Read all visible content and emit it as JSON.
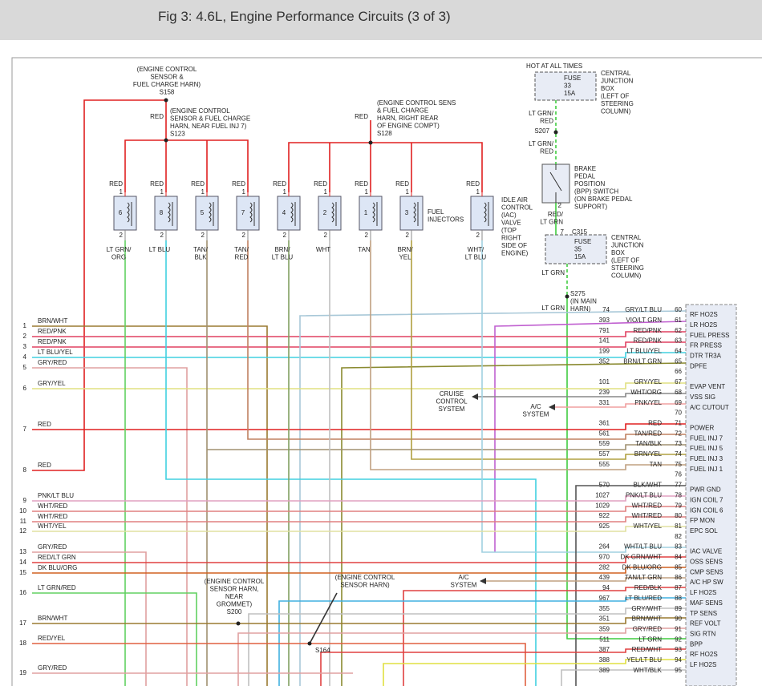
{
  "header": {
    "title": "Fig 3: 4.6L, Engine Performance Circuits (3 of 3)"
  },
  "injectors": [
    {
      "feed": "RED",
      "pin_in": "1",
      "number": "6",
      "pin_out": "2",
      "wire": [
        "LT GRN/",
        "ORG"
      ]
    },
    {
      "feed": "RED",
      "pin_in": "1",
      "number": "8",
      "pin_out": "2",
      "wire": [
        "LT BLU"
      ]
    },
    {
      "feed": "RED",
      "pin_in": "1",
      "number": "5",
      "pin_out": "2",
      "wire": [
        "TAN/",
        "BLK"
      ]
    },
    {
      "feed": "RED",
      "pin_in": "1",
      "number": "7",
      "pin_out": "2",
      "wire": [
        "TAN/",
        "RED"
      ]
    },
    {
      "feed": "RED",
      "pin_in": "1",
      "number": "4",
      "pin_out": "2",
      "wire": [
        "BRN/",
        "LT BLU"
      ]
    },
    {
      "feed": "RED",
      "pin_in": "1",
      "number": "2",
      "pin_out": "2",
      "wire": [
        "WHT"
      ]
    },
    {
      "feed": "RED",
      "pin_in": "1",
      "number": "1",
      "pin_out": "2",
      "wire": [
        "TAN"
      ]
    },
    {
      "feed": "RED",
      "pin_in": "1",
      "number": "3",
      "pin_out": "2",
      "wire": [
        "BRN/",
        "YEL"
      ]
    },
    {
      "feed": "RED",
      "pin_in": "1",
      "number": "",
      "pin_out": "2",
      "wire": [
        "WHT/",
        "LT BLU"
      ]
    }
  ],
  "notes": [
    {
      "lines": [
        "(ENGINE CONTROL",
        "SENSOR &",
        "FUEL CHARGE HARN)",
        "S158"
      ]
    },
    {
      "lines": [
        "(ENGINE CONTROL",
        "SENSOR & FUEL CHARGE",
        "HARN, NEAR FUEL INJ 7)",
        "S123"
      ]
    },
    {
      "lines": [
        "(ENGINE CONTROL SENS",
        "& FUEL CHARGE",
        "HARN, RIGHT REAR",
        "OF ENGINE COMPT)",
        "S128"
      ]
    },
    {
      "lines": [
        "RED"
      ]
    },
    {
      "lines": [
        "RED"
      ]
    },
    {
      "lines": [
        "HOT AT ALL TIMES"
      ]
    },
    {
      "lines": [
        "FUSE",
        "33",
        "15A"
      ]
    },
    {
      "lines": [
        "CENTRAL",
        "JUNCTION",
        "BOX",
        "(LEFT OF",
        "STEERING",
        "COLUMN)"
      ]
    },
    {
      "lines": [
        "LT GRN/",
        "RED"
      ]
    },
    {
      "lines": [
        "S207"
      ]
    },
    {
      "lines": [
        "LT GRN/",
        "RED"
      ]
    },
    {
      "lines": [
        "BRAKE",
        "PEDAL",
        "POSITION",
        "(BPP) SWITCH",
        "(ON BRAKE PEDAL",
        "SUPPORT)"
      ]
    },
    {
      "lines": [
        "2"
      ]
    },
    {
      "lines": [
        "RED/",
        "LT GRN"
      ]
    },
    {
      "lines": [
        "7"
      ]
    },
    {
      "lines": [
        "C315"
      ]
    },
    {
      "lines": [
        "FUSE",
        "35",
        "15A"
      ]
    },
    {
      "lines": [
        "CENTRAL",
        "JUNCTION",
        "BOX",
        "(LEFT OF",
        "STEERING",
        "COLUMN)"
      ]
    },
    {
      "lines": [
        "LT GRN"
      ]
    },
    {
      "lines": [
        "S275",
        "(IN MAIN",
        "HARN)"
      ]
    },
    {
      "lines": [
        "LT GRN"
      ]
    },
    {
      "lines": [
        "CRUISE",
        "CONTROL",
        "SYSTEM"
      ]
    },
    {
      "lines": [
        "A/C",
        "SYSTEM"
      ]
    },
    {
      "lines": [
        "A/C",
        "SYSTEM"
      ]
    },
    {
      "lines": [
        "(ENGINE CONTROL",
        "SENSOR HARN,",
        "NEAR",
        "GROMMET)",
        "S200"
      ]
    },
    {
      "lines": [
        "(ENGINE CONTROL",
        "SENSOR HARN)"
      ]
    },
    {
      "lines": [
        "S164"
      ]
    },
    {
      "lines": [
        "FUEL",
        "INJECTORS"
      ]
    },
    {
      "lines": [
        "IDLE AIR",
        "CONTROL",
        "(IAC)",
        "VALVE",
        "(TOP",
        "RIGHT",
        "SIDE OF",
        "ENGINE)"
      ]
    }
  ],
  "left_wires": [
    {
      "pin": "1",
      "color": "BRN/WHT"
    },
    {
      "pin": "2",
      "color": "RED/PNK"
    },
    {
      "pin": "3",
      "color": "RED/PNK"
    },
    {
      "pin": "4",
      "color": "LT BLU/YEL"
    },
    {
      "pin": "5",
      "color": "GRY/RED"
    },
    {
      "pin": "6",
      "color": "GRY/YEL"
    },
    {
      "pin": "7",
      "color": "RED"
    },
    {
      "pin": "8",
      "color": "RED"
    },
    {
      "pin": "9",
      "color": "PNK/LT BLU"
    },
    {
      "pin": "10",
      "color": "WHT/RED"
    },
    {
      "pin": "11",
      "color": "WHT/RED"
    },
    {
      "pin": "12",
      "color": "WHT/YEL"
    },
    {
      "pin": "13",
      "color": "GRY/RED"
    },
    {
      "pin": "14",
      "color": "RED/LT GRN"
    },
    {
      "pin": "15",
      "color": "DK BLU/ORG"
    },
    {
      "pin": "16",
      "color": "LT GRN/RED"
    },
    {
      "pin": "17",
      "color": "BRN/WHT"
    },
    {
      "pin": "18",
      "color": "RED/YEL"
    },
    {
      "pin": "19",
      "color": "GRY/RED"
    }
  ],
  "pcm_pins": [
    {
      "circuit": "74",
      "color": "GRY/LT BLU",
      "pin": "60",
      "function": "RF HO2S"
    },
    {
      "circuit": "393",
      "color": "VIO/LT GRN",
      "pin": "61",
      "function": "LR HO2S"
    },
    {
      "circuit": "791",
      "color": "RED/PNK",
      "pin": "62",
      "function": "FUEL PRESS"
    },
    {
      "circuit": "141",
      "color": "RED/PNK",
      "pin": "63",
      "function": "FR PRESS"
    },
    {
      "circuit": "199",
      "color": "LT BLU/YEL",
      "pin": "64",
      "function": "DTR TR3A"
    },
    {
      "circuit": "352",
      "color": "BRN/LT GRN",
      "pin": "65",
      "function": "DPFE"
    },
    {
      "pin": "66"
    },
    {
      "circuit": "101",
      "color": "GRY/YEL",
      "pin": "67",
      "function": "EVAP VENT"
    },
    {
      "circuit": "239",
      "color": "WHT/ORG",
      "pin": "68",
      "function": "VSS SIG"
    },
    {
      "circuit": "331",
      "color": "PNK/YEL",
      "pin": "69",
      "function": "A/C CUTOUT"
    },
    {
      "pin": "70"
    },
    {
      "circuit": "361",
      "color": "RED",
      "pin": "71",
      "function": "POWER"
    },
    {
      "circuit": "561",
      "color": "TAN/RED",
      "pin": "72",
      "function": "FUEL INJ 7"
    },
    {
      "circuit": "559",
      "color": "TAN/BLK",
      "pin": "73",
      "function": "FUEL INJ 5"
    },
    {
      "circuit": "557",
      "color": "BRN/YEL",
      "pin": "74",
      "function": "FUEL INJ 3"
    },
    {
      "circuit": "555",
      "color": "TAN",
      "pin": "75",
      "function": "FUEL INJ 1"
    },
    {
      "pin": "76"
    },
    {
      "circuit": "570",
      "color": "BLK/WHT",
      "pin": "77",
      "function": "PWR GND"
    },
    {
      "circuit": "1027",
      "color": "PNK/LT BLU",
      "pin": "78",
      "function": "IGN COIL 7"
    },
    {
      "circuit": "1029",
      "color": "WHT/RED",
      "pin": "79",
      "function": "IGN COIL 6"
    },
    {
      "circuit": "922",
      "color": "WHT/RED",
      "pin": "80",
      "function": "FP MON"
    },
    {
      "circuit": "925",
      "color": "WHT/YEL",
      "pin": "81",
      "function": "EPC SOL"
    },
    {
      "pin": "82"
    },
    {
      "circuit": "264",
      "color": "WHT/LT BLU",
      "pin": "83",
      "function": "IAC VALVE"
    },
    {
      "circuit": "970",
      "color": "DK GRN/WHT",
      "pin": "84",
      "function": "OSS SENS"
    },
    {
      "circuit": "282",
      "color": "DK BLU/ORG",
      "pin": "85",
      "function": "CMP SENS"
    },
    {
      "circuit": "439",
      "color": "TAN/LT GRN",
      "pin": "86",
      "function": "A/C HP SW"
    },
    {
      "circuit": "94",
      "color": "RED/BLK",
      "pin": "87",
      "function": "LF HO2S"
    },
    {
      "circuit": "967",
      "color": "LT BLU/RED",
      "pin": "88",
      "function": "MAF SENS"
    },
    {
      "circuit": "355",
      "color": "GRY/WHT",
      "pin": "89",
      "function": "TP SENS"
    },
    {
      "circuit": "351",
      "color": "BRN/WHT",
      "pin": "90",
      "function": "REF VOLT"
    },
    {
      "circuit": "359",
      "color": "GRY/RED",
      "pin": "91",
      "function": "SIG RTN"
    },
    {
      "circuit": "511",
      "color": "LT GRN",
      "pin": "92",
      "function": "BPP"
    },
    {
      "circuit": "387",
      "color": "RED/WHT",
      "pin": "93",
      "function": "RF HO2S"
    },
    {
      "circuit": "388",
      "color": "YEL/LT BLU",
      "pin": "94",
      "function": "LF HO2S"
    },
    {
      "circuit": "389",
      "color": "WHT/BLK",
      "pin": "95"
    }
  ]
}
